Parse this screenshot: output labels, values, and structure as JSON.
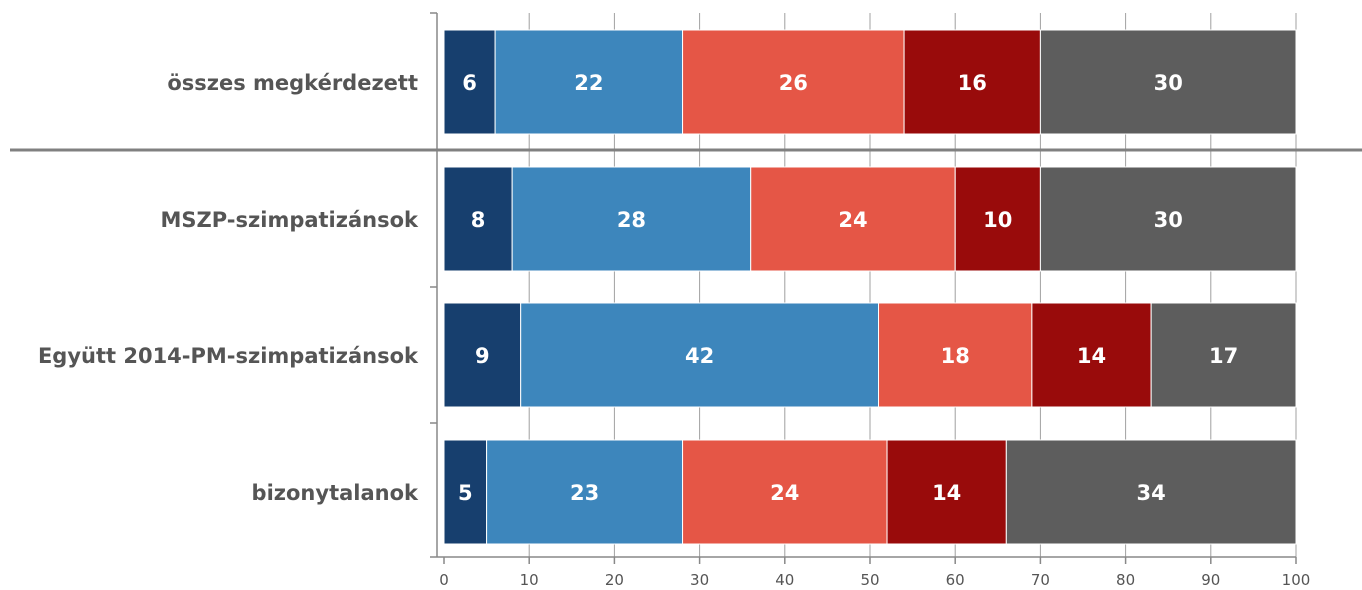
{
  "chart_data": {
    "type": "bar",
    "orientation": "horizontal",
    "stacked": true,
    "categories": [
      "összes megkérdezett",
      "MSZP-szimpatizánsok",
      "Együtt 2014-PM-szimpatizánsok",
      "bizonytalanok"
    ],
    "series": [
      {
        "values": [
          6,
          8,
          9,
          5
        ],
        "color": "#173f6e"
      },
      {
        "values": [
          22,
          28,
          42,
          23
        ],
        "color": "#3d86bc"
      },
      {
        "values": [
          26,
          24,
          18,
          24
        ],
        "color": "#e55646"
      },
      {
        "values": [
          16,
          10,
          14,
          14
        ],
        "color": "#990b0b"
      },
      {
        "values": [
          30,
          30,
          17,
          34
        ],
        "color": "#5d5d5d"
      }
    ],
    "xlim": [
      0,
      100
    ],
    "xticks": [
      0,
      10,
      20,
      30,
      40,
      50,
      60,
      70,
      80,
      90,
      100
    ],
    "separator_after_category": 0,
    "grid": "vertical",
    "legend": "none",
    "title": "",
    "xlabel": "",
    "ylabel": ""
  }
}
